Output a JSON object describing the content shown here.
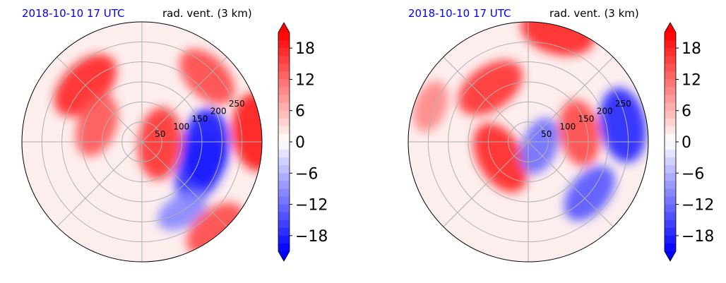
{
  "chart_data": [
    {
      "type": "heatmap",
      "projection": "polar",
      "time_label": "2018-10-10 17 UTC",
      "variable_label": "rad. vent. (3 km)",
      "radial_ticks": [
        "50",
        "100",
        "150",
        "200",
        "250"
      ],
      "radial_max_km": 300,
      "grid": true,
      "colorbar": {
        "vmin": -21,
        "vmax": 21,
        "levels_step": 1.5,
        "extend": "both",
        "ticks": [
          "18",
          "12",
          "6",
          "0",
          "−6",
          "−12",
          "−18"
        ],
        "tick_values": [
          18,
          12,
          6,
          0,
          -6,
          -12,
          -18
        ],
        "cmap": "bwr",
        "low_color": "#0000ff",
        "high_color": "#ff0000"
      },
      "features": [
        {
          "desc": "positive outflow band NW",
          "azimuth_deg": 135,
          "r_km": 200,
          "value": 18
        },
        {
          "desc": "positive band W",
          "azimuth_deg": 160,
          "r_km": 120,
          "value": 14
        },
        {
          "desc": "positive NE",
          "azimuth_deg": 45,
          "r_km": 230,
          "value": 15
        },
        {
          "desc": "positive E edge",
          "azimuth_deg": 5,
          "r_km": 285,
          "value": 19
        },
        {
          "desc": "positive near center E",
          "azimuth_deg": -5,
          "r_km": 45,
          "value": 17
        },
        {
          "desc": "negative inflow SE",
          "azimuth_deg": -25,
          "r_km": 160,
          "value": -17
        },
        {
          "desc": "negative E",
          "azimuth_deg": -5,
          "r_km": 160,
          "value": -19
        },
        {
          "desc": "negative S/SE",
          "azimuth_deg": -60,
          "r_km": 200,
          "value": -10
        },
        {
          "desc": "positive SE rim",
          "azimuth_deg": -50,
          "r_km": 285,
          "value": 15
        }
      ]
    },
    {
      "type": "heatmap",
      "projection": "polar",
      "time_label": "2018-10-10 17 UTC",
      "variable_label": "rad. vent. (3 km)",
      "radial_ticks": [
        "50",
        "100",
        "150",
        "200",
        "250"
      ],
      "radial_max_km": 300,
      "grid": true,
      "colorbar": {
        "vmin": -21,
        "vmax": 21,
        "levels_step": 1.5,
        "extend": "both",
        "ticks": [
          "18",
          "12",
          "6",
          "0",
          "−6",
          "−12",
          "−18"
        ],
        "tick_values": [
          18,
          12,
          6,
          0,
          -6,
          -12,
          -18
        ],
        "cmap": "bwr",
        "low_color": "#0000ff",
        "high_color": "#ff0000"
      },
      "features": [
        {
          "desc": "positive outflow N/NE",
          "azimuth_deg": 75,
          "r_km": 285,
          "value": 18
        },
        {
          "desc": "positive W band",
          "azimuth_deg": 160,
          "r_km": 260,
          "value": 10
        },
        {
          "desc": "positive arc NW",
          "azimuth_deg": 125,
          "r_km": 165,
          "value": 17
        },
        {
          "desc": "positive near center SW",
          "azimuth_deg": -150,
          "r_km": 80,
          "value": 18
        },
        {
          "desc": "positive bands E",
          "azimuth_deg": 10,
          "r_km": 130,
          "value": 15
        },
        {
          "desc": "negative inflow E/SE",
          "azimuth_deg": 10,
          "r_km": 240,
          "value": -18
        },
        {
          "desc": "negative SE",
          "azimuth_deg": -40,
          "r_km": 200,
          "value": -14
        },
        {
          "desc": "negative near center",
          "azimuth_deg": -20,
          "r_km": 30,
          "value": -12
        }
      ]
    }
  ]
}
